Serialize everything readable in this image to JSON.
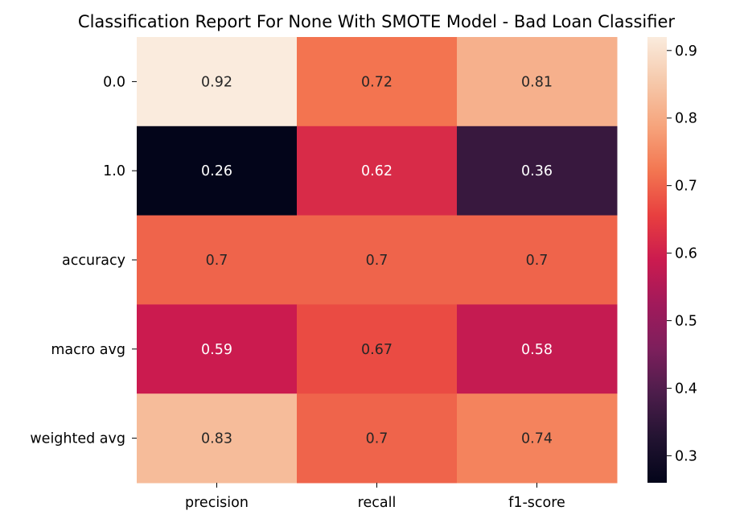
{
  "chart_data": {
    "type": "heatmap",
    "title": "Classification Report For None With SMOTE Model - Bad Loan Classifier",
    "xlabel": "",
    "ylabel": "",
    "columns": [
      "precision",
      "recall",
      "f1-score"
    ],
    "rows": [
      "0.0",
      "1.0",
      "accuracy",
      "macro avg",
      "weighted avg"
    ],
    "values": [
      [
        0.92,
        0.72,
        0.81
      ],
      [
        0.26,
        0.62,
        0.36
      ],
      [
        0.7,
        0.7,
        0.7
      ],
      [
        0.59,
        0.67,
        0.58
      ],
      [
        0.83,
        0.7,
        0.74
      ]
    ],
    "labels": [
      [
        "0.92",
        "0.72",
        "0.81"
      ],
      [
        "0.26",
        "0.62",
        "0.36"
      ],
      [
        "0.7",
        "0.7",
        "0.7"
      ],
      [
        "0.59",
        "0.67",
        "0.58"
      ],
      [
        "0.83",
        "0.7",
        "0.74"
      ]
    ],
    "colormap": "rocket",
    "vmin": 0.26,
    "vmax": 0.92,
    "colorbar_ticks": [
      "0.3",
      "0.4",
      "0.5",
      "0.6",
      "0.7",
      "0.8",
      "0.9"
    ],
    "colorbar_tick_values": [
      0.3,
      0.4,
      0.5,
      0.6,
      0.7,
      0.8,
      0.9
    ],
    "annotation_colors": {
      "dark": "#262626",
      "light": "#ffffff"
    }
  }
}
